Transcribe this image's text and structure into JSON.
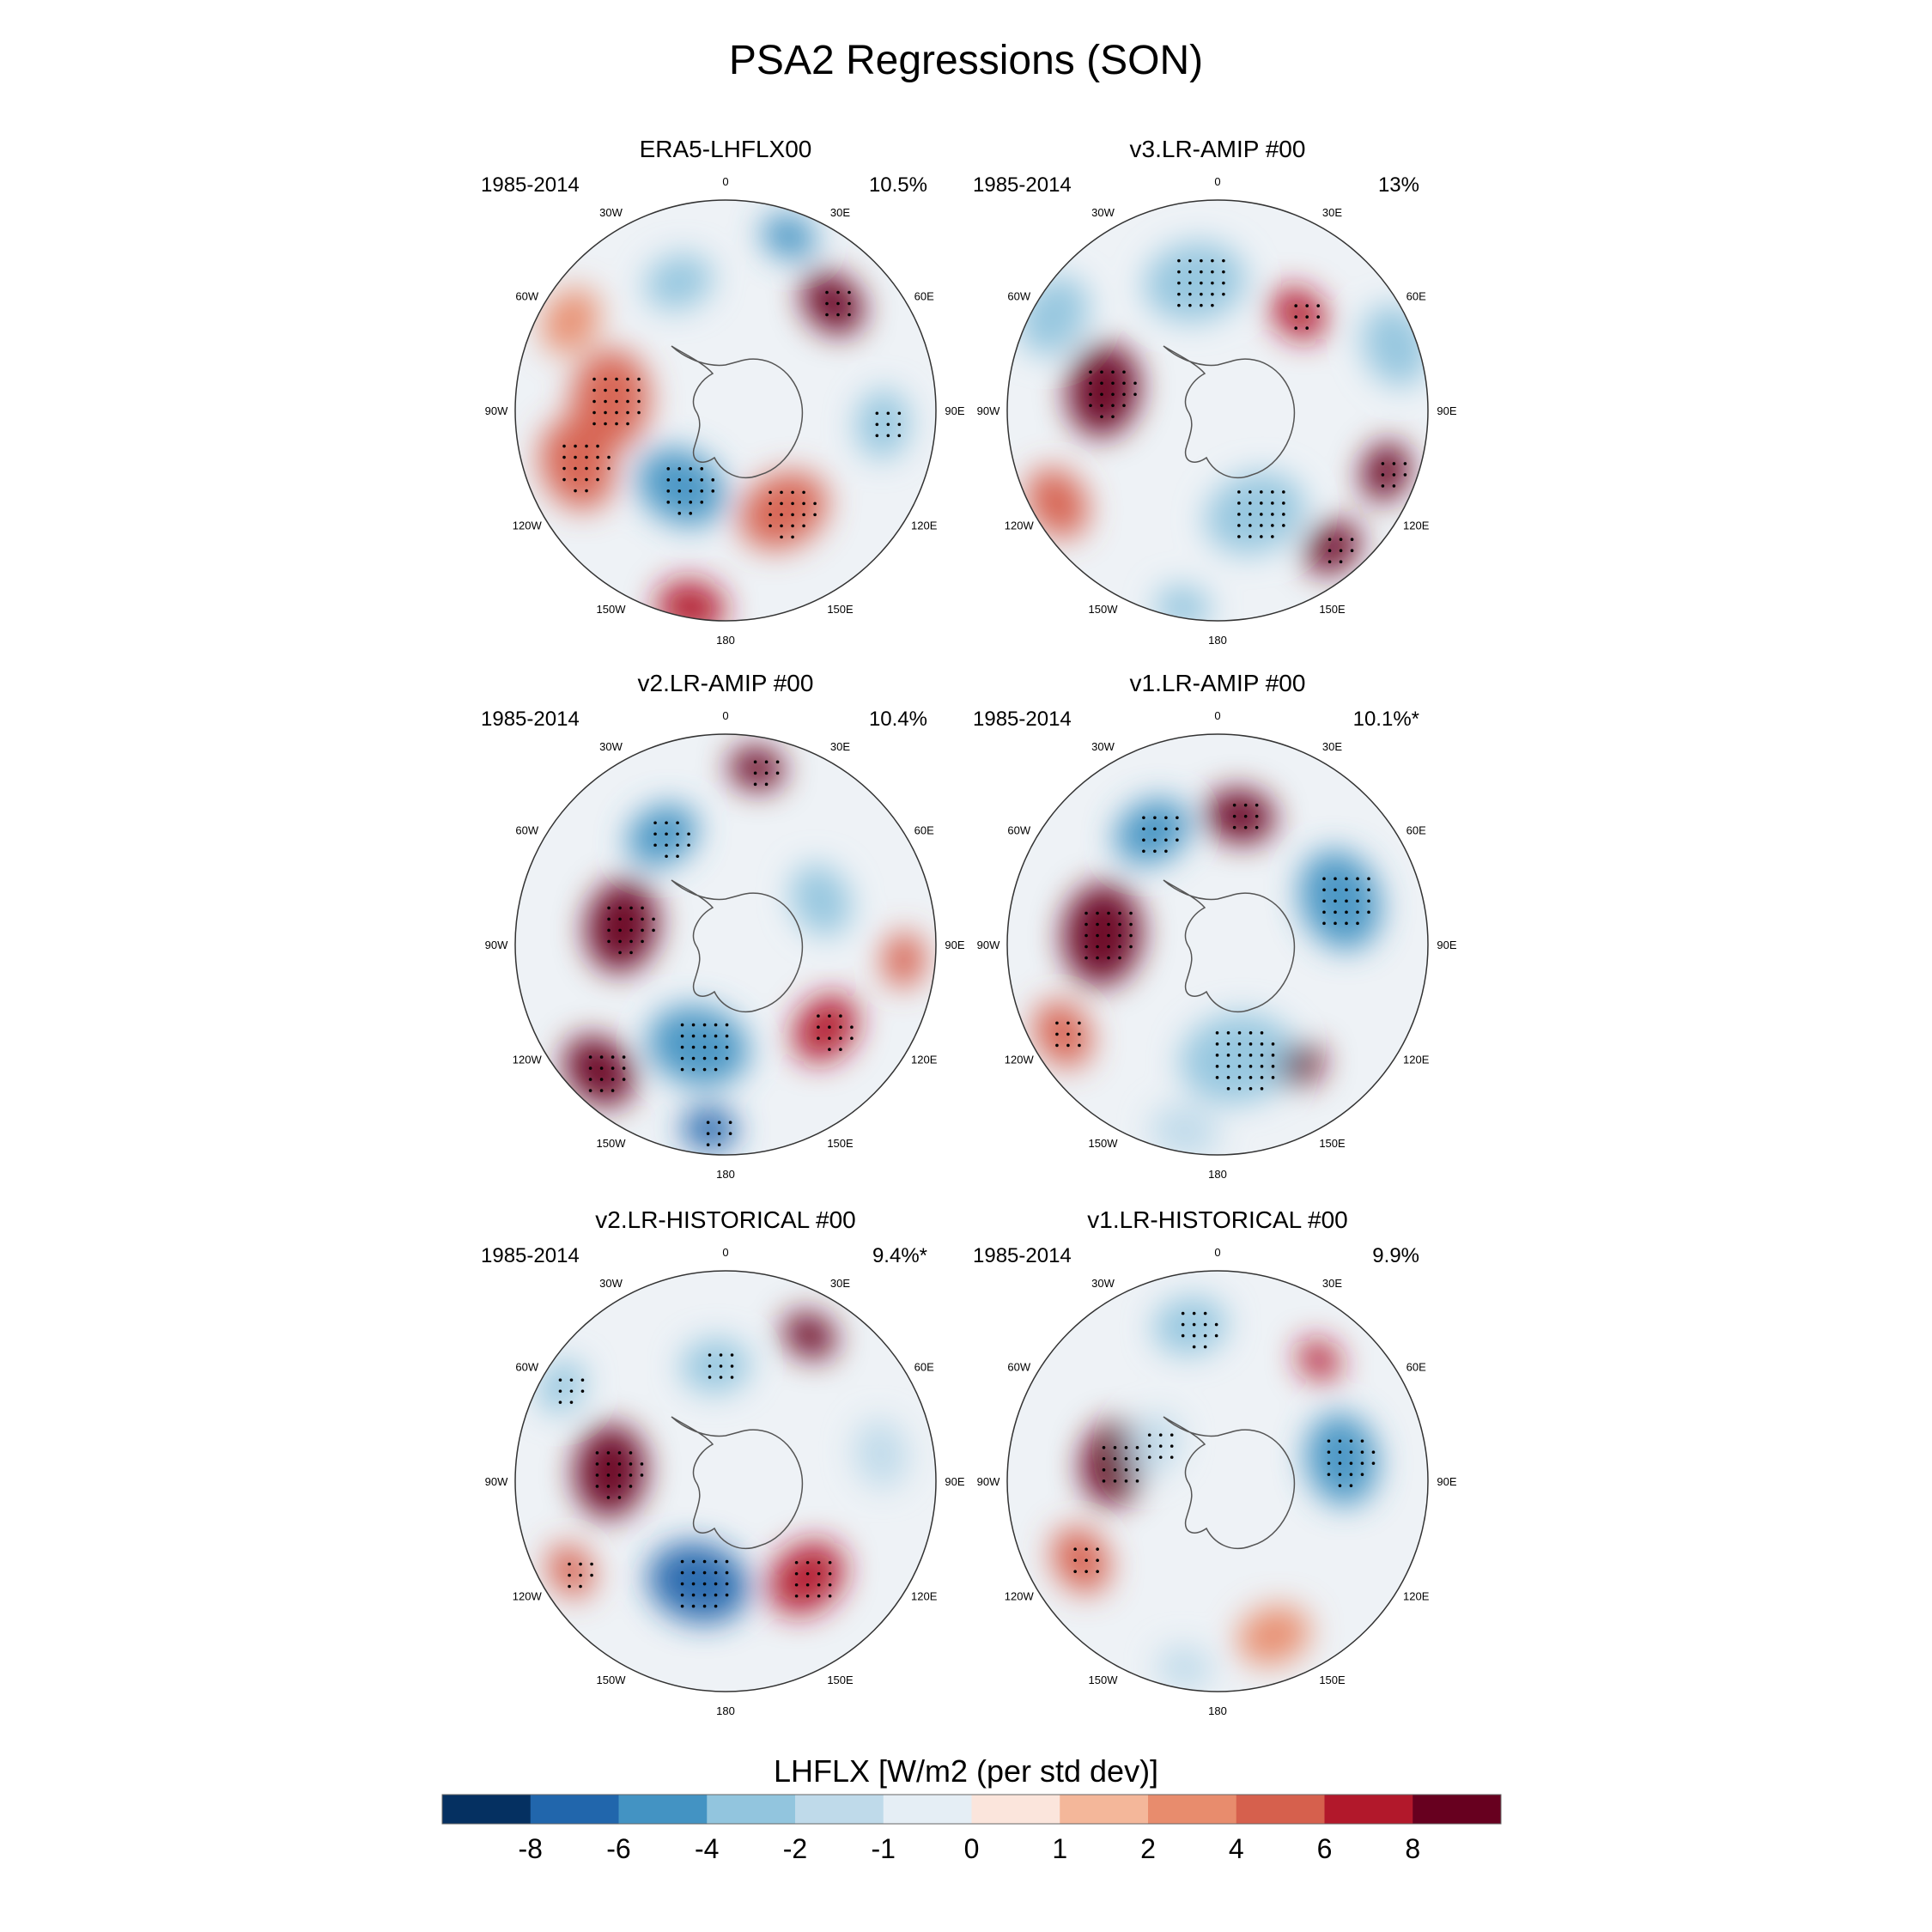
{
  "title": "PSA2 Regressions (SON)",
  "lon_labels": [
    "0",
    "30E",
    "60E",
    "90E",
    "120E",
    "150E",
    "180",
    "150W",
    "120W",
    "90W",
    "60W",
    "30W"
  ],
  "panels": [
    {
      "name": "ERA5-LHFLX00",
      "period": "1985-2014",
      "variance": "10.5%",
      "blobs": [
        {
          "lon": -85,
          "r": 0.55,
          "w": 0.22,
          "v": 5,
          "stip": true
        },
        {
          "lon": -110,
          "r": 0.75,
          "w": 0.2,
          "v": 4,
          "stip": true
        },
        {
          "lon": -150,
          "r": 0.42,
          "w": 0.2,
          "v": -6,
          "stip": true
        },
        {
          "lon": 150,
          "r": 0.55,
          "w": 0.2,
          "v": 5,
          "stip": true
        },
        {
          "lon": 45,
          "r": 0.72,
          "w": 0.15,
          "v": 8,
          "stip": true
        },
        {
          "lon": 95,
          "r": 0.75,
          "w": 0.15,
          "v": -3,
          "stip": true
        },
        {
          "lon": -20,
          "r": 0.65,
          "w": 0.15,
          "v": -3,
          "stip": false
        },
        {
          "lon": 20,
          "r": 0.88,
          "w": 0.12,
          "v": -6,
          "stip": false
        },
        {
          "lon": -170,
          "r": 0.95,
          "w": 0.15,
          "v": 6,
          "stip": false
        },
        {
          "lon": -60,
          "r": 0.85,
          "w": 0.15,
          "v": 3,
          "stip": false
        }
      ]
    },
    {
      "name": "v3.LR-AMIP  #00",
      "period": "1985-2014",
      "variance": "13%",
      "blobs": [
        {
          "lon": -80,
          "r": 0.55,
          "w": 0.2,
          "v": 8,
          "stip": true
        },
        {
          "lon": -10,
          "r": 0.62,
          "w": 0.22,
          "v": -4,
          "stip": true
        },
        {
          "lon": 40,
          "r": 0.6,
          "w": 0.13,
          "v": 6,
          "stip": true
        },
        {
          "lon": 160,
          "r": 0.52,
          "w": 0.22,
          "v": -4,
          "stip": true
        },
        {
          "lon": 110,
          "r": 0.85,
          "w": 0.13,
          "v": 8,
          "stip": true
        },
        {
          "lon": 140,
          "r": 0.85,
          "w": 0.13,
          "v": 8,
          "stip": true
        },
        {
          "lon": -60,
          "r": 0.9,
          "w": 0.18,
          "v": -4,
          "stip": false
        },
        {
          "lon": 70,
          "r": 0.9,
          "w": 0.18,
          "v": -4,
          "stip": false
        },
        {
          "lon": -120,
          "r": 0.88,
          "w": 0.16,
          "v": 4,
          "stip": false
        },
        {
          "lon": -170,
          "r": 0.95,
          "w": 0.12,
          "v": -4,
          "stip": false
        }
      ]
    },
    {
      "name": "v2.LR-AMIP  #00",
      "period": "1985-2014",
      "variance": "10.4%",
      "blobs": [
        {
          "lon": -80,
          "r": 0.5,
          "w": 0.2,
          "v": 8,
          "stip": true
        },
        {
          "lon": -30,
          "r": 0.6,
          "w": 0.16,
          "v": -6,
          "stip": true
        },
        {
          "lon": 10,
          "r": 0.85,
          "w": 0.12,
          "v": 8,
          "stip": true
        },
        {
          "lon": -165,
          "r": 0.5,
          "w": 0.22,
          "v": -6,
          "stip": true
        },
        {
          "lon": -135,
          "r": 0.85,
          "w": 0.17,
          "v": 8,
          "stip": true
        },
        {
          "lon": -175,
          "r": 0.88,
          "w": 0.12,
          "v": -8,
          "stip": true
        },
        {
          "lon": 130,
          "r": 0.62,
          "w": 0.16,
          "v": 6,
          "stip": true
        },
        {
          "lon": 65,
          "r": 0.5,
          "w": 0.16,
          "v": -4,
          "stip": false
        },
        {
          "lon": 95,
          "r": 0.85,
          "w": 0.12,
          "v": 4,
          "stip": false
        }
      ]
    },
    {
      "name": "v1.LR-AMIP  #00",
      "period": "1985-2014",
      "variance": "10.1%*",
      "blobs": [
        {
          "lon": -85,
          "r": 0.55,
          "w": 0.22,
          "v": 8,
          "stip": true
        },
        {
          "lon": 10,
          "r": 0.62,
          "w": 0.15,
          "v": 8,
          "stip": true
        },
        {
          "lon": -30,
          "r": 0.62,
          "w": 0.17,
          "v": -6,
          "stip": true
        },
        {
          "lon": 70,
          "r": 0.62,
          "w": 0.22,
          "v": -6,
          "stip": true
        },
        {
          "lon": 170,
          "r": 0.55,
          "w": 0.25,
          "v": -4,
          "stip": true
        },
        {
          "lon": 145,
          "r": 0.7,
          "w": 0.1,
          "v": 8,
          "stip": false
        },
        {
          "lon": -120,
          "r": 0.85,
          "w": 0.15,
          "v": 4,
          "stip": true
        },
        {
          "lon": -170,
          "r": 0.9,
          "w": 0.15,
          "v": -2,
          "stip": false
        }
      ]
    },
    {
      "name": "v2.LR-HISTORICAL  #00",
      "period": "1985-2014",
      "variance": "9.4%*",
      "blobs": [
        {
          "lon": -85,
          "r": 0.55,
          "w": 0.2,
          "v": 8,
          "stip": true
        },
        {
          "lon": -165,
          "r": 0.5,
          "w": 0.22,
          "v": -8,
          "stip": true
        },
        {
          "lon": 140,
          "r": 0.6,
          "w": 0.18,
          "v": 6,
          "stip": true
        },
        {
          "lon": 30,
          "r": 0.8,
          "w": 0.12,
          "v": 8,
          "stip": false
        },
        {
          "lon": -5,
          "r": 0.55,
          "w": 0.15,
          "v": -4,
          "stip": true
        },
        {
          "lon": -60,
          "r": 0.9,
          "w": 0.12,
          "v": -4,
          "stip": true
        },
        {
          "lon": -120,
          "r": 0.85,
          "w": 0.12,
          "v": 4,
          "stip": true
        },
        {
          "lon": 80,
          "r": 0.75,
          "w": 0.15,
          "v": -2,
          "stip": false
        }
      ]
    },
    {
      "name": "v1.LR-HISTORICAL  #00",
      "period": "1985-2014",
      "variance": "9.9%",
      "blobs": [
        {
          "lon": -80,
          "r": 0.5,
          "w": 0.18,
          "v": 8,
          "stip": true
        },
        {
          "lon": -10,
          "r": 0.75,
          "w": 0.16,
          "v": -4,
          "stip": true
        },
        {
          "lon": 80,
          "r": 0.6,
          "w": 0.2,
          "v": -6,
          "stip": true
        },
        {
          "lon": 40,
          "r": 0.75,
          "w": 0.1,
          "v": 6,
          "stip": false
        },
        {
          "lon": -120,
          "r": 0.75,
          "w": 0.15,
          "v": 4,
          "stip": true
        },
        {
          "lon": -60,
          "r": 0.35,
          "w": 0.14,
          "v": -2,
          "stip": true
        },
        {
          "lon": 160,
          "r": 0.78,
          "w": 0.16,
          "v": 2,
          "stip": false
        },
        {
          "lon": -170,
          "r": 0.9,
          "w": 0.12,
          "v": -2,
          "stip": false
        }
      ]
    }
  ],
  "colorbar": {
    "label": "LHFLX [W/m2 (per std dev)]",
    "ticks": [
      "-8",
      "-6",
      "-4",
      "-2",
      "-1",
      "0",
      "1",
      "2",
      "4",
      "6",
      "8"
    ],
    "colors": [
      "#053061",
      "#2166ac",
      "#4393c3",
      "#92c5de",
      "#bfdaea",
      "#e5eef5",
      "#fbe5dc",
      "#f4b79a",
      "#e88c6d",
      "#d6604d",
      "#b2182b",
      "#67001f"
    ]
  }
}
